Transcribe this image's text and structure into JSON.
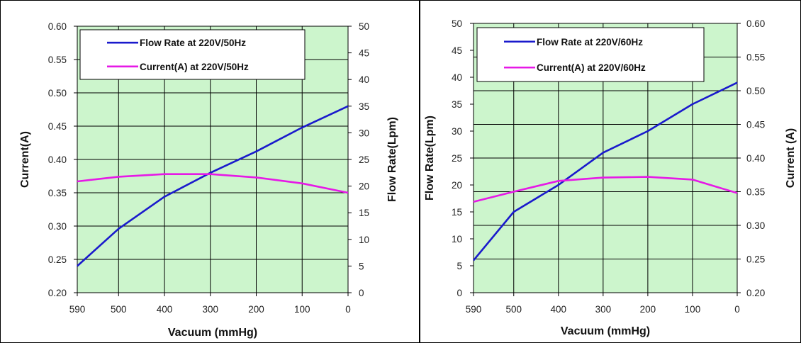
{
  "colors": {
    "plot_background": "#ccf5cc",
    "grid": "#000000",
    "flow_series": "#1a1acc",
    "current_series": "#e619e6"
  },
  "chart_data": [
    {
      "type": "line",
      "x_label": "Vacuum (mmHg)",
      "x_ticks": [
        "590",
        "500",
        "400",
        "300",
        "200",
        "100",
        "0"
      ],
      "x_values": [
        590,
        500,
        400,
        300,
        200,
        100,
        0
      ],
      "x_range": [
        590,
        0
      ],
      "left_axis": {
        "label": "Current(A)",
        "range": [
          0.2,
          0.6
        ],
        "ticks": [
          "0.20",
          "0.25",
          "0.30",
          "0.35",
          "0.40",
          "0.45",
          "0.50",
          "0.55",
          "0.60"
        ]
      },
      "right_axis": {
        "label": "Flow Rate(Lpm)",
        "range": [
          0,
          50
        ],
        "ticks": [
          "0",
          "5",
          "10",
          "15",
          "20",
          "25",
          "30",
          "35",
          "40",
          "45",
          "50"
        ]
      },
      "grid": true,
      "legend_position": "top-left",
      "series": [
        {
          "name": "Flow Rate at 220V/50Hz",
          "axis": "right",
          "color": "#1a1acc",
          "x": [
            590,
            500,
            400,
            300,
            200,
            100,
            0
          ],
          "y": [
            5,
            12,
            18,
            22.5,
            26.5,
            31,
            35
          ]
        },
        {
          "name": "Current(A) at 220V/50Hz",
          "axis": "left",
          "color": "#e619e6",
          "x": [
            590,
            500,
            400,
            300,
            200,
            100,
            0
          ],
          "y": [
            0.367,
            0.374,
            0.378,
            0.378,
            0.373,
            0.364,
            0.35
          ]
        }
      ]
    },
    {
      "type": "line",
      "x_label": "Vacuum (mmHg)",
      "x_ticks": [
        "590",
        "500",
        "400",
        "300",
        "200",
        "100",
        "0"
      ],
      "x_values": [
        590,
        500,
        400,
        300,
        200,
        100,
        0
      ],
      "x_range": [
        590,
        0
      ],
      "left_axis": {
        "label": "Flow Rate(Lpm)",
        "range": [
          0,
          50
        ],
        "ticks": [
          "0",
          "5",
          "10",
          "15",
          "20",
          "25",
          "30",
          "35",
          "40",
          "45",
          "50"
        ]
      },
      "right_axis": {
        "label": "Current (A)",
        "range": [
          0.2,
          0.6
        ],
        "ticks": [
          "0.20",
          "0.25",
          "0.30",
          "0.35",
          "0.40",
          "0.45",
          "0.50",
          "0.55",
          "0.60"
        ]
      },
      "grid": true,
      "legend_position": "top-left",
      "series": [
        {
          "name": "Flow Rate at 220V/60Hz",
          "axis": "left",
          "color": "#1a1acc",
          "x": [
            590,
            500,
            400,
            300,
            200,
            100,
            0
          ],
          "y": [
            6,
            15,
            20,
            26,
            30,
            35,
            39
          ]
        },
        {
          "name": "Current(A) at 220V/60Hz",
          "axis": "right",
          "color": "#e619e6",
          "x": [
            590,
            500,
            400,
            300,
            200,
            100,
            0
          ],
          "y": [
            0.335,
            0.35,
            0.366,
            0.371,
            0.372,
            0.368,
            0.348
          ]
        }
      ]
    }
  ]
}
